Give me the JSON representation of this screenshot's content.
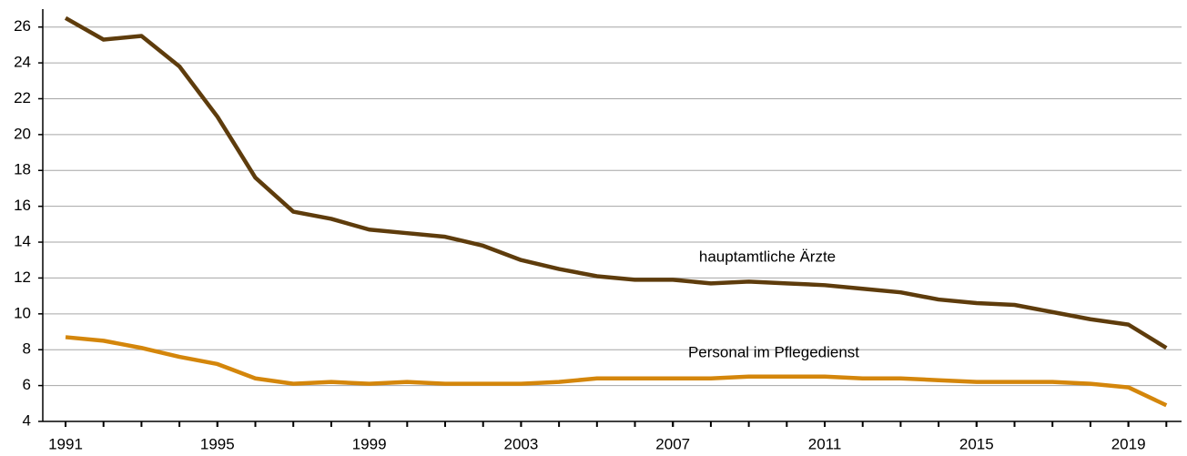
{
  "chart_data": {
    "type": "line",
    "x": [
      1991,
      1992,
      1993,
      1994,
      1995,
      1996,
      1997,
      1998,
      1999,
      2000,
      2001,
      2002,
      2003,
      2004,
      2005,
      2006,
      2007,
      2008,
      2009,
      2010,
      2011,
      2012,
      2013,
      2014,
      2015,
      2016,
      2017,
      2018,
      2019,
      2020
    ],
    "series": [
      {
        "name": "hauptamtliche Ärzte",
        "color": "#5e3c0c",
        "values": [
          26.5,
          25.3,
          25.5,
          23.8,
          21.0,
          17.6,
          15.7,
          15.3,
          14.7,
          14.5,
          14.3,
          13.8,
          13.0,
          12.5,
          12.1,
          11.9,
          11.9,
          11.7,
          11.8,
          11.7,
          11.6,
          11.4,
          11.2,
          10.8,
          10.6,
          10.5,
          10.1,
          9.7,
          9.4,
          8.1
        ]
      },
      {
        "name": "Personal im Pflegedienst",
        "color": "#d4860b",
        "values": [
          8.7,
          8.5,
          8.1,
          7.6,
          7.2,
          6.4,
          6.1,
          6.2,
          6.1,
          6.2,
          6.1,
          6.1,
          6.1,
          6.2,
          6.4,
          6.4,
          6.4,
          6.4,
          6.5,
          6.5,
          6.5,
          6.4,
          6.4,
          6.3,
          6.2,
          6.2,
          6.2,
          6.1,
          5.9,
          4.9
        ]
      }
    ],
    "xlim": [
      1990.4,
      2020.4
    ],
    "xticks": [
      1991,
      1995,
      1999,
      2003,
      2007,
      2011,
      2015,
      2019
    ],
    "ylim": [
      4,
      27
    ],
    "yticks": [
      4,
      6,
      8,
      10,
      12,
      14,
      16,
      18,
      20,
      22,
      24,
      26
    ],
    "grid": true
  }
}
